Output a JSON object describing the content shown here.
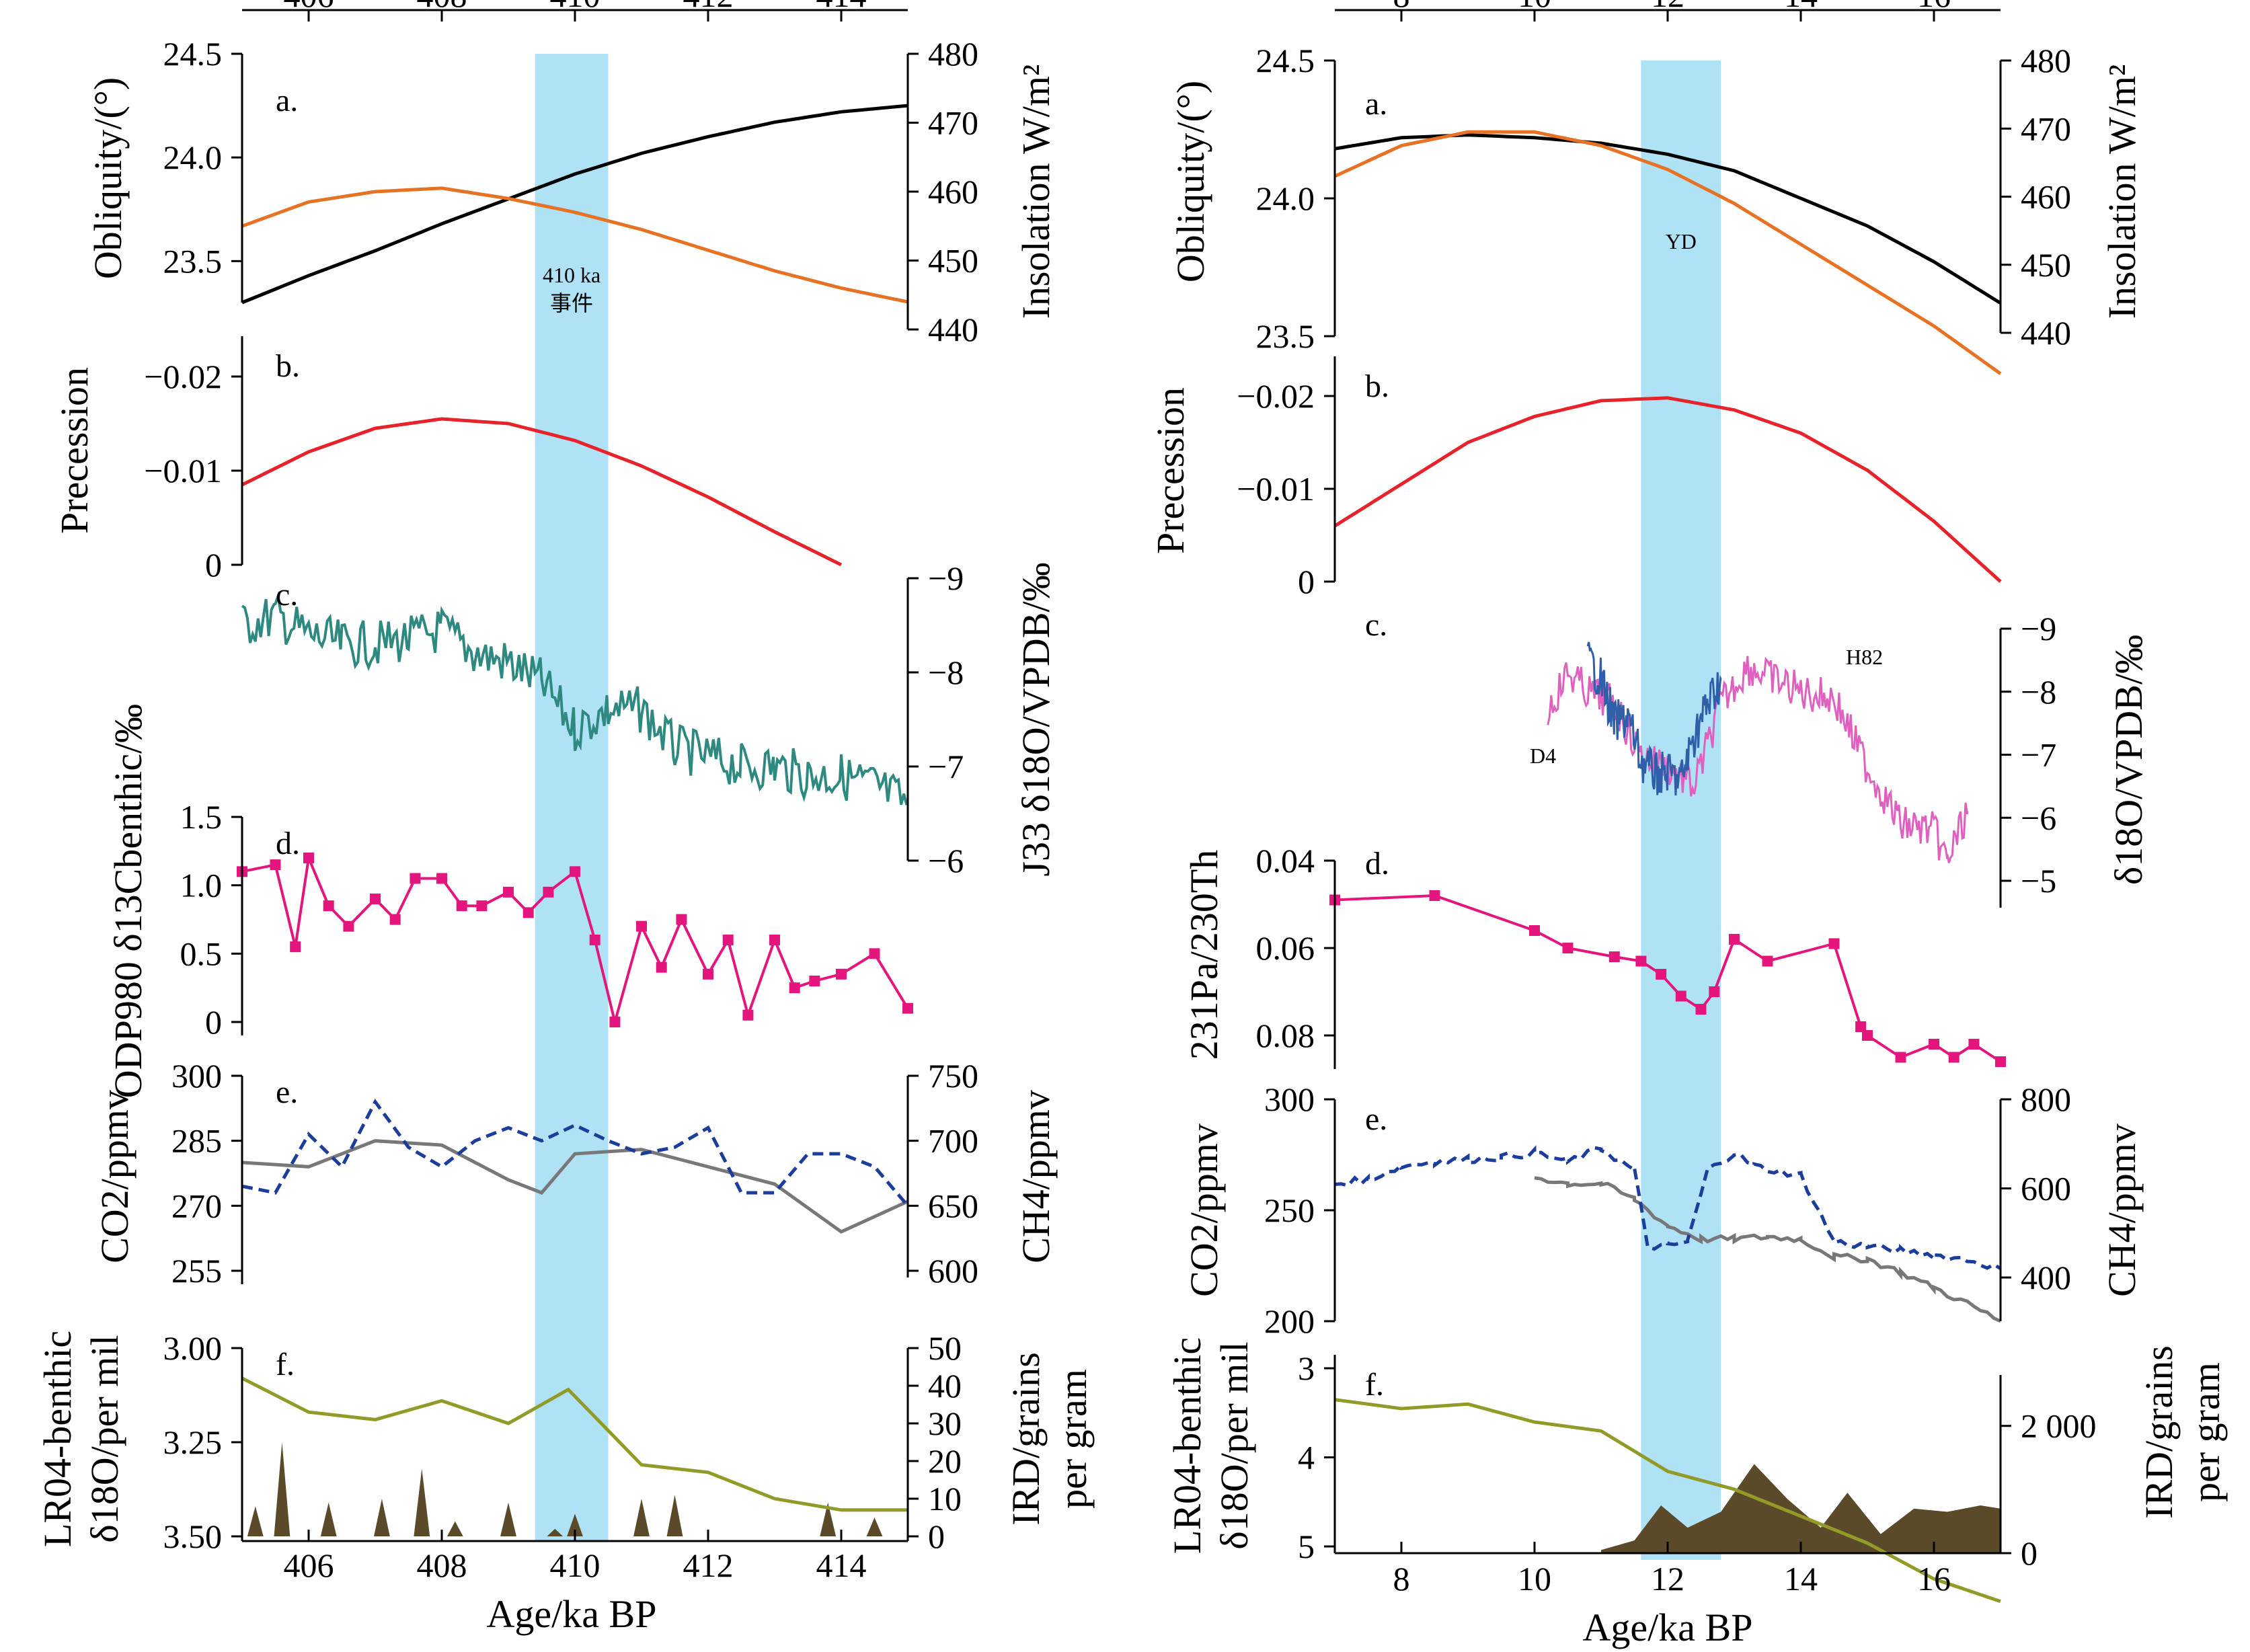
{
  "colors": {
    "obliquity": "#000000",
    "insolation": "#e87224",
    "precession": "#e8222a",
    "teal": "#2e8a80",
    "magenta": "#e5157e",
    "gray": "#787878",
    "navy": "#1b3d9b",
    "olive": "#939b28",
    "ird": "#5a4a2a",
    "d4": "#2e5fa8",
    "h82": "#e060c0",
    "band": "#b0e2f6"
  },
  "left": {
    "x_axis": {
      "label": "Age/ka BP",
      "ticks": [
        "406",
        "408",
        "410",
        "412",
        "414"
      ]
    },
    "event_label": [
      "410 ka",
      "事件"
    ],
    "panels": {
      "a": {
        "letter": "a.",
        "ylabel": "Obliquity/(°)",
        "y2label": "Insolation W/m²",
        "yticks": [
          "23.5",
          "24.0",
          "24.5"
        ],
        "y2ticks": [
          "440",
          "450",
          "460",
          "470",
          "480"
        ]
      },
      "b": {
        "letter": "b.",
        "ylabel": "Precession",
        "yticks": [
          "0",
          "−0.01",
          "−0.02"
        ]
      },
      "c": {
        "letter": "c.",
        "y2label": "J33 δ18O/VPDB/‰",
        "y2ticks": [
          "−9",
          "−8",
          "−7",
          "−6"
        ]
      },
      "d": {
        "letter": "d.",
        "ylabel": "ODP980 δ13Cbenthic/‰",
        "yticks": [
          "0",
          "0.5",
          "1.0",
          "1.5"
        ]
      },
      "e": {
        "letter": "e.",
        "ylabel": "CO2/ppmv",
        "y2label": "CH4/ppmv",
        "yticks": [
          "255",
          "270",
          "285",
          "300"
        ],
        "y2ticks": [
          "600",
          "650",
          "700",
          "750"
        ]
      },
      "f": {
        "letter": "f.",
        "ylabel_line1": "LR04-benthic",
        "ylabel_line2": "δ18O/per mil",
        "y2label_line1": "IRD/grains",
        "y2label_line2": "per gram",
        "yticks": [
          "3.00",
          "3.25",
          "3.50"
        ],
        "y2ticks": [
          "0",
          "10",
          "20",
          "30",
          "40",
          "50"
        ]
      }
    }
  },
  "right": {
    "x_axis": {
      "label": "Age/ka BP",
      "ticks": [
        "8",
        "10",
        "12",
        "14",
        "16"
      ]
    },
    "event_label": "YD",
    "series_labels": {
      "d4": "D4",
      "h82": "H82"
    },
    "panels": {
      "a": {
        "letter": "a.",
        "ylabel": "Obliquity/(°)",
        "y2label": "Insolation W/m²",
        "yticks": [
          "23.5",
          "24.0",
          "24.5"
        ],
        "y2ticks": [
          "440",
          "450",
          "460",
          "470",
          "480"
        ]
      },
      "b": {
        "letter": "b.",
        "ylabel": "Precession",
        "yticks": [
          "0",
          "−0.01",
          "−0.02"
        ]
      },
      "c": {
        "letter": "c.",
        "y2label": "δ18O/VPDB/‰",
        "y2ticks": [
          "−9",
          "−8",
          "−7",
          "−6",
          "−5"
        ]
      },
      "d": {
        "letter": "d.",
        "ylabel": "231Pa/230Th",
        "yticks": [
          "0.04",
          "0.06",
          "0.08"
        ]
      },
      "e": {
        "letter": "e.",
        "ylabel": "CO2/ppmv",
        "y2label": "CH4/ppmv",
        "yticks": [
          "200",
          "250",
          "300"
        ],
        "y2ticks": [
          "400",
          "600",
          "800"
        ]
      },
      "f": {
        "letter": "f.",
        "ylabel_line1": "LR04-benthic",
        "ylabel_line2": "δ18O/per mil",
        "y2label_line1": "IRD/grains",
        "y2label_line2": "per gram",
        "yticks": [
          "3",
          "4",
          "5"
        ],
        "y2ticks": [
          "0",
          "2 000"
        ]
      }
    }
  },
  "chart_data": [
    {
      "type": "line",
      "panel": "left",
      "x_unit": "ka BP",
      "xlim": [
        405,
        415
      ],
      "event_band": [
        409.4,
        410.5
      ],
      "obliquity": {
        "x": [
          405,
          406,
          407,
          408,
          409,
          410,
          411,
          412,
          413,
          414,
          415
        ],
        "y": [
          23.3,
          23.43,
          23.55,
          23.68,
          23.8,
          23.92,
          24.02,
          24.1,
          24.17,
          24.22,
          24.25
        ]
      },
      "insolation": {
        "x": [
          405,
          406,
          407,
          408,
          409,
          410,
          411,
          412,
          413,
          414,
          415
        ],
        "y": [
          455,
          458.5,
          460,
          460.5,
          459,
          457,
          454.5,
          451.5,
          448.5,
          446,
          444
        ]
      },
      "precession": {
        "x": [
          405,
          406,
          407,
          408,
          409,
          410,
          411,
          412,
          413,
          414
        ],
        "y": [
          -0.0085,
          -0.012,
          -0.0145,
          -0.0155,
          -0.015,
          -0.0132,
          -0.0105,
          -0.0072,
          -0.0035,
          0
        ]
      },
      "j33_d18o": {
        "x": [
          405,
          405.5,
          406,
          406.5,
          407,
          407.5,
          408,
          408.5,
          409,
          409.5,
          410,
          410.5,
          411,
          411.5,
          412,
          412.5,
          413,
          413.5,
          414,
          414.5,
          415
        ],
        "y": [
          -8.5,
          -8.6,
          -8.4,
          -8.3,
          -8.3,
          -8.35,
          -8.45,
          -8.2,
          -8.1,
          -7.9,
          -7.4,
          -7.6,
          -7.6,
          -7.2,
          -7.1,
          -7.0,
          -7.0,
          -6.9,
          -6.9,
          -6.8,
          -6.6
        ]
      },
      "odp980_d13c": {
        "x": [
          405,
          405.5,
          405.8,
          406,
          406.3,
          406.6,
          407,
          407.3,
          407.6,
          408,
          408.3,
          408.6,
          409,
          409.3,
          409.6,
          410,
          410.3,
          410.6,
          411,
          411.3,
          411.6,
          412,
          412.3,
          412.6,
          413,
          413.3,
          413.6,
          414,
          414.5,
          415
        ],
        "y": [
          1.1,
          1.15,
          0.55,
          1.2,
          0.85,
          0.7,
          0.9,
          0.75,
          1.05,
          1.05,
          0.85,
          0.85,
          0.95,
          0.8,
          0.95,
          1.1,
          0.6,
          0.0,
          0.7,
          0.4,
          0.75,
          0.35,
          0.6,
          0.05,
          0.6,
          0.25,
          0.3,
          0.35,
          0.5,
          0.1
        ]
      },
      "co2": {
        "x": [
          405,
          406,
          407,
          408,
          409,
          409.5,
          410,
          411,
          412,
          413,
          414,
          415
        ],
        "y": [
          280,
          279,
          285,
          284,
          276,
          273,
          282,
          283,
          279,
          275,
          264,
          271
        ]
      },
      "ch4": {
        "x": [
          405,
          405.5,
          406,
          406.5,
          407,
          407.5,
          408,
          408.5,
          409,
          409.5,
          410,
          410.5,
          411,
          411.5,
          412,
          412.5,
          413,
          413.5,
          414,
          414.5,
          415
        ],
        "y": [
          665,
          660,
          705,
          680,
          730,
          695,
          680,
          700,
          710,
          700,
          712,
          700,
          690,
          695,
          710,
          660,
          660,
          690,
          690,
          680,
          650
        ]
      },
      "lr04_d18o": {
        "x": [
          405,
          406,
          407,
          408,
          409,
          409.9,
          411,
          412,
          413,
          414,
          415
        ],
        "y": [
          3.08,
          3.17,
          3.19,
          3.14,
          3.2,
          3.11,
          3.31,
          3.33,
          3.4,
          3.43,
          3.43
        ]
      },
      "ird": {
        "x": [
          405.2,
          405.6,
          406.3,
          407.1,
          407.7,
          408.2,
          409,
          409.7,
          410,
          411,
          411.5,
          413.8,
          414.5
        ],
        "y": [
          8,
          25,
          9,
          10,
          18,
          4,
          9,
          2,
          6,
          10,
          11,
          9,
          5
        ]
      }
    },
    {
      "type": "line",
      "panel": "right",
      "x_unit": "ka BP",
      "xlim": [
        7,
        17
      ],
      "event_band": [
        11.6,
        12.8
      ],
      "obliquity": {
        "x": [
          7,
          8,
          9,
          10,
          11,
          12,
          13,
          14,
          15,
          16,
          17
        ],
        "y": [
          24.18,
          24.22,
          24.23,
          24.22,
          24.2,
          24.16,
          24.1,
          24.0,
          23.9,
          23.77,
          23.62
        ]
      },
      "insolation": {
        "x": [
          7,
          8,
          9,
          10,
          11,
          12,
          13,
          14,
          15,
          16,
          17
        ],
        "y": [
          463,
          467.5,
          469.5,
          469.5,
          467.5,
          464,
          459,
          453,
          447,
          441,
          434
        ]
      },
      "precession": {
        "x": [
          7,
          8,
          9,
          10,
          11,
          12,
          13,
          14,
          15,
          16,
          17
        ],
        "y": [
          -0.006,
          -0.0105,
          -0.015,
          -0.0178,
          -0.0195,
          -0.0198,
          -0.0185,
          -0.016,
          -0.012,
          -0.0065,
          0
        ]
      },
      "d4_d18o": {
        "x": [
          10.8,
          11.0,
          11.2,
          11.4,
          11.6,
          11.8,
          12.0,
          12.2,
          12.4,
          12.6,
          12.8
        ],
        "y": [
          -8.5,
          -8.2,
          -7.5,
          -7.6,
          -6.9,
          -6.7,
          -6.7,
          -6.6,
          -7.3,
          -7.8,
          -8.2
        ]
      },
      "h82_d18o": {
        "x": [
          10.2,
          10.5,
          10.8,
          11.2,
          11.6,
          12.0,
          12.4,
          12.8,
          13.2,
          13.6,
          14.0,
          14.5,
          15.0,
          15.5,
          16.0,
          16.2,
          16.5
        ],
        "y": [
          -7.7,
          -8.3,
          -8.0,
          -7.8,
          -7.0,
          -6.8,
          -6.5,
          -7.8,
          -8.4,
          -8.2,
          -8.0,
          -7.9,
          -6.8,
          -5.9,
          -5.8,
          -5.3,
          -6.1
        ]
      },
      "pa_th": {
        "x": [
          7,
          8.5,
          10,
          10.5,
          11.2,
          11.6,
          11.9,
          12.2,
          12.5,
          12.7,
          13,
          13.5,
          14.5,
          14.9,
          15,
          15.5,
          16,
          16.3,
          16.6,
          17
        ],
        "y": [
          0.049,
          0.048,
          0.056,
          0.06,
          0.062,
          0.063,
          0.066,
          0.071,
          0.074,
          0.07,
          0.058,
          0.063,
          0.059,
          0.078,
          0.08,
          0.085,
          0.082,
          0.085,
          0.082,
          0.086
        ]
      },
      "co2": {
        "x": [
          10,
          10.5,
          11,
          11.5,
          12,
          12.5,
          13,
          13.5,
          14,
          14.5,
          15,
          15.5,
          16,
          16.5,
          17
        ],
        "y": [
          265,
          262,
          262,
          255,
          243,
          237,
          237,
          238,
          237,
          229,
          228,
          222,
          215,
          208,
          200
        ]
      },
      "ch4": {
        "x": [
          7,
          7.5,
          8,
          8.5,
          9,
          9.5,
          10,
          10.5,
          11,
          11.5,
          11.7,
          12,
          12.3,
          12.6,
          13,
          13.3,
          13.6,
          14,
          14.5,
          15,
          15.5,
          16,
          16.5,
          17
        ],
        "y": [
          610,
          620,
          650,
          660,
          665,
          670,
          680,
          660,
          690,
          640,
          470,
          470,
          480,
          640,
          680,
          650,
          640,
          630,
          480,
          470,
          460,
          450,
          440,
          420
        ]
      },
      "lr04_d18o": {
        "x": [
          7,
          8,
          9,
          10,
          11,
          12,
          13,
          14,
          15,
          16,
          17
        ],
        "y": [
          3.35,
          3.45,
          3.4,
          3.6,
          3.7,
          4.15,
          4.35,
          4.65,
          4.95,
          5.35,
          5.6
        ]
      },
      "ird": {
        "x": [
          11.0,
          11.5,
          11.9,
          12.3,
          12.8,
          13.3,
          13.8,
          14.3,
          14.7,
          15.2,
          15.7,
          16.2,
          16.7,
          17.0
        ],
        "y": [
          50,
          200,
          750,
          400,
          650,
          1400,
          850,
          400,
          950,
          300,
          700,
          650,
          750,
          700
        ]
      }
    }
  ]
}
